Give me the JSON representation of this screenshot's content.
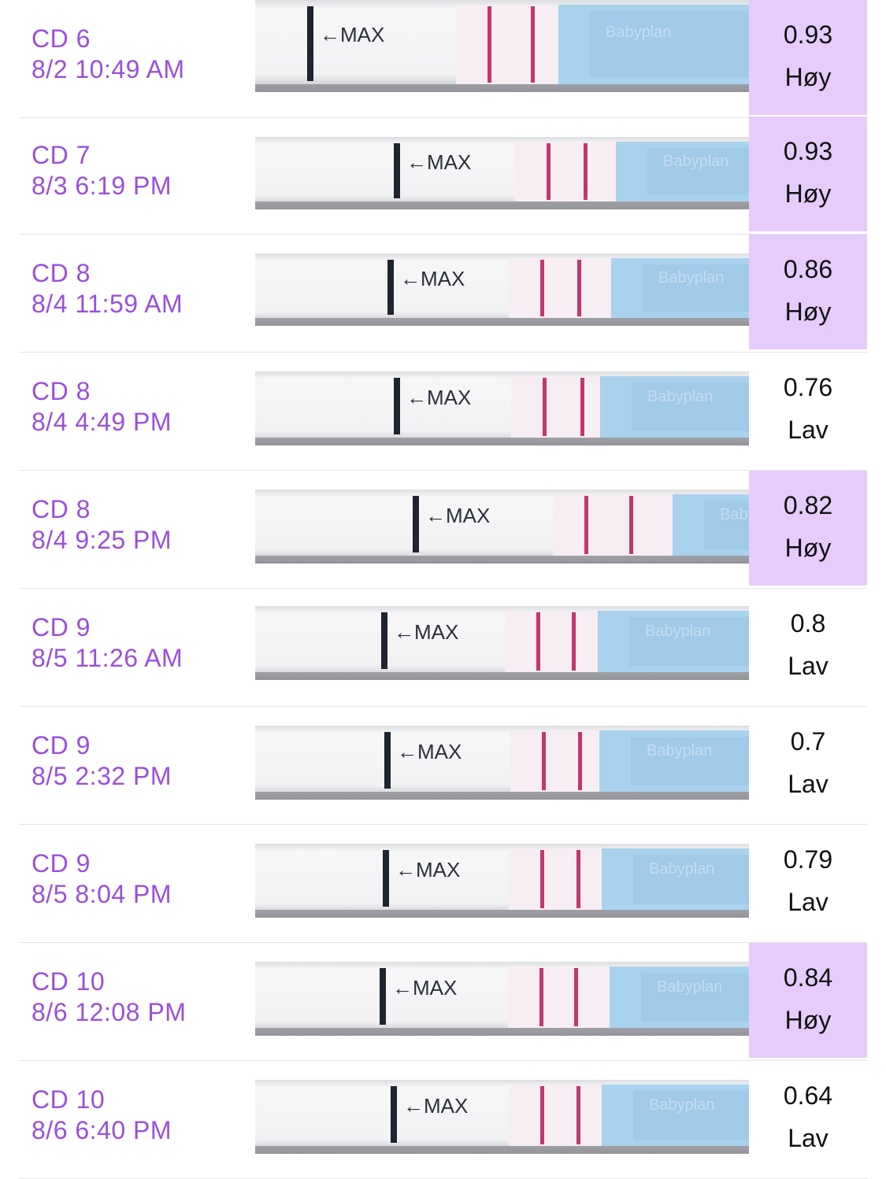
{
  "colors": {
    "label": "#9a4fdc",
    "high_bg": "#e6ccfb",
    "test_line": "#c2376f",
    "strip_blue": "#a9d2ee"
  },
  "strip_text": {
    "max_marker": "←MAX",
    "brand": "Babyplan"
  },
  "rows": [
    {
      "day": "CD 6",
      "datetime": "8/2 10:49 AM",
      "value": "0.93",
      "level": "Høy",
      "high": true
    },
    {
      "day": "CD 7",
      "datetime": "8/3 6:19 PM",
      "value": "0.93",
      "level": "Høy",
      "high": true
    },
    {
      "day": "CD 8",
      "datetime": "8/4 11:59 AM",
      "value": "0.86",
      "level": "Høy",
      "high": true
    },
    {
      "day": "CD 8",
      "datetime": "8/4 4:49 PM",
      "value": "0.76",
      "level": "Lav",
      "high": false
    },
    {
      "day": "CD 8",
      "datetime": "8/4 9:25 PM",
      "value": "0.82",
      "level": "Høy",
      "high": true
    },
    {
      "day": "CD 9",
      "datetime": "8/5 11:26 AM",
      "value": "0.8",
      "level": "Lav",
      "high": false
    },
    {
      "day": "CD 9",
      "datetime": "8/5 2:32 PM",
      "value": "0.7",
      "level": "Lav",
      "high": false
    },
    {
      "day": "CD 9",
      "datetime": "8/5 8:04 PM",
      "value": "0.79",
      "level": "Lav",
      "high": false
    },
    {
      "day": "CD 10",
      "datetime": "8/6 12:08 PM",
      "value": "0.84",
      "level": "Høy",
      "high": true
    },
    {
      "day": "CD 10",
      "datetime": "8/6 6:40 PM",
      "value": "0.64",
      "level": "Lav",
      "high": false
    }
  ]
}
